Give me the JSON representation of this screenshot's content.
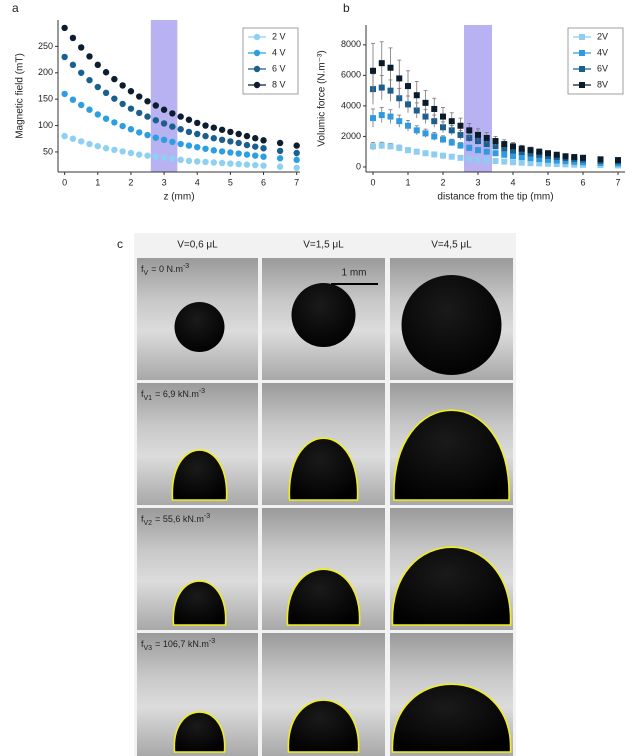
{
  "chart_data": [
    {
      "type": "scatter",
      "label": "a",
      "marker": "circle",
      "xlabel": "z (mm)",
      "ylabel": "Magnetic field (mT)",
      "xlim": [
        -0.2,
        7.1
      ],
      "ylim": [
        12,
        300
      ],
      "xticks": [
        0,
        1,
        2,
        3,
        4,
        5,
        6,
        7
      ],
      "yticks": [
        50,
        100,
        150,
        200,
        250
      ],
      "highlight_x": [
        2.6,
        3.4
      ],
      "highlight_color": "#b9b2f2",
      "x": [
        0,
        0.25,
        0.5,
        0.75,
        1,
        1.25,
        1.5,
        1.75,
        2,
        2.25,
        2.5,
        2.75,
        3,
        3.25,
        3.5,
        3.75,
        4,
        4.25,
        4.5,
        4.75,
        5,
        5.25,
        5.5,
        5.75,
        6,
        6.5,
        7
      ],
      "series": [
        {
          "name": "2 V",
          "color": "#8ed0f2",
          "values": [
            80,
            75,
            70,
            65,
            61,
            57,
            54,
            51,
            48,
            45,
            43,
            41,
            39,
            37,
            35,
            33,
            32,
            31,
            30,
            29,
            28,
            27,
            26,
            25,
            24,
            22,
            20
          ]
        },
        {
          "name": "4 V",
          "color": "#2b9fe2",
          "values": [
            160,
            149,
            139,
            130,
            121,
            113,
            106,
            99,
            93,
            87,
            82,
            77,
            73,
            69,
            65,
            62,
            59,
            56,
            53,
            51,
            49,
            47,
            45,
            43,
            41,
            38,
            35
          ]
        },
        {
          "name": "6 V",
          "color": "#1b5f8f",
          "values": [
            230,
            215,
            200,
            186,
            173,
            162,
            151,
            141,
            132,
            124,
            117,
            110,
            104,
            98,
            93,
            88,
            84,
            80,
            76,
            73,
            70,
            67,
            63,
            60,
            57,
            52,
            48
          ]
        },
        {
          "name": "8 V",
          "color": "#0b1d2e",
          "values": [
            285,
            266,
            248,
            231,
            215,
            201,
            188,
            176,
            165,
            155,
            146,
            138,
            130,
            123,
            117,
            111,
            105,
            100,
            96,
            92,
            88,
            84,
            80,
            76,
            72,
            67,
            62
          ]
        }
      ]
    },
    {
      "type": "scatter",
      "label": "b",
      "marker": "square",
      "xlabel": "distance from the tip (mm)",
      "ylabel": "Volumic force (N.m⁻³)",
      "xlim": [
        -0.2,
        7.2
      ],
      "ylim": [
        -330,
        9300
      ],
      "xticks": [
        0,
        1,
        2,
        3,
        4,
        5,
        6,
        7
      ],
      "yticks": [
        0,
        2000,
        4000,
        6000,
        8000
      ],
      "highlight_x": [
        2.6,
        3.4
      ],
      "highlight_color": "#b9b2f2",
      "x": [
        0,
        0.25,
        0.5,
        0.75,
        1,
        1.25,
        1.5,
        1.75,
        2,
        2.25,
        2.5,
        2.75,
        3,
        3.25,
        3.5,
        3.75,
        4,
        4.25,
        4.5,
        4.75,
        5,
        5.25,
        5.5,
        5.75,
        6,
        6.5,
        7
      ],
      "series": [
        {
          "name": "2V",
          "color": "#8ecdf2",
          "values": [
            1350,
            1400,
            1350,
            1250,
            1100,
            1000,
            900,
            820,
            740,
            670,
            600,
            540,
            480,
            430,
            390,
            350,
            310,
            280,
            250,
            230,
            210,
            190,
            170,
            150,
            140,
            120,
            100
          ],
          "errors": [
            250,
            220,
            200,
            180,
            160,
            150,
            140,
            130,
            120,
            110,
            100,
            90,
            80,
            70,
            65,
            60,
            55,
            50,
            45,
            40,
            38,
            35,
            32,
            30,
            28,
            25,
            22
          ]
        },
        {
          "name": "4V",
          "color": "#2f9ae0",
          "values": [
            3200,
            3400,
            3300,
            3000,
            2700,
            2400,
            2200,
            2000,
            1800,
            1600,
            1400,
            1250,
            1100,
            1000,
            900,
            800,
            720,
            650,
            580,
            520,
            470,
            420,
            380,
            340,
            310,
            260,
            230
          ],
          "errors": [
            600,
            500,
            450,
            400,
            350,
            300,
            280,
            260,
            240,
            220,
            200,
            180,
            160,
            150,
            140,
            130,
            120,
            110,
            100,
            90,
            80,
            70,
            60,
            55,
            50,
            45,
            40
          ]
        },
        {
          "name": "6V",
          "color": "#1c5f8e",
          "values": [
            5100,
            5200,
            5000,
            4500,
            4100,
            3700,
            3300,
            3000,
            2600,
            2400,
            2100,
            1900,
            1700,
            1500,
            1350,
            1200,
            1080,
            980,
            880,
            800,
            720,
            650,
            580,
            530,
            480,
            400,
            360
          ],
          "errors": [
            1000,
            800,
            700,
            650,
            550,
            500,
            450,
            400,
            350,
            320,
            300,
            270,
            240,
            210,
            190,
            170,
            150,
            140,
            130,
            120,
            110,
            100,
            90,
            80,
            70,
            60,
            50
          ]
        },
        {
          "name": "8V",
          "color": "#0a1c2c",
          "values": [
            6300,
            6800,
            6500,
            5800,
            5300,
            4700,
            4200,
            3800,
            3300,
            3000,
            2700,
            2400,
            2100,
            1900,
            1700,
            1500,
            1350,
            1200,
            1100,
            1000,
            900,
            800,
            700,
            650,
            600,
            500,
            450
          ],
          "errors": [
            1800,
            1400,
            1300,
            1200,
            1000,
            900,
            800,
            700,
            600,
            550,
            500,
            450,
            400,
            350,
            300,
            280,
            250,
            220,
            200,
            180,
            160,
            150,
            130,
            120,
            110,
            100,
            90
          ]
        }
      ]
    }
  ],
  "photo_panel": {
    "label": "c",
    "columns": [
      "V=0,6 μL",
      "V=1,5 μL",
      "V=4,5 μL"
    ],
    "scale_bar": "1 mm",
    "rows": [
      {
        "symbol": "f",
        "subscript": "V",
        "text": "= 0 N.m",
        "superscript": "-3"
      },
      {
        "symbol": "f",
        "subscript": "V1",
        "text": "= 6,9 kN.m",
        "superscript": "-3"
      },
      {
        "symbol": "f",
        "subscript": "V2",
        "text": "= 55,6 kN.m",
        "superscript": "-3"
      },
      {
        "symbol": "f",
        "subscript": "V3",
        "text": "= 106,7 kN.m",
        "superscript": "-3"
      }
    ]
  }
}
